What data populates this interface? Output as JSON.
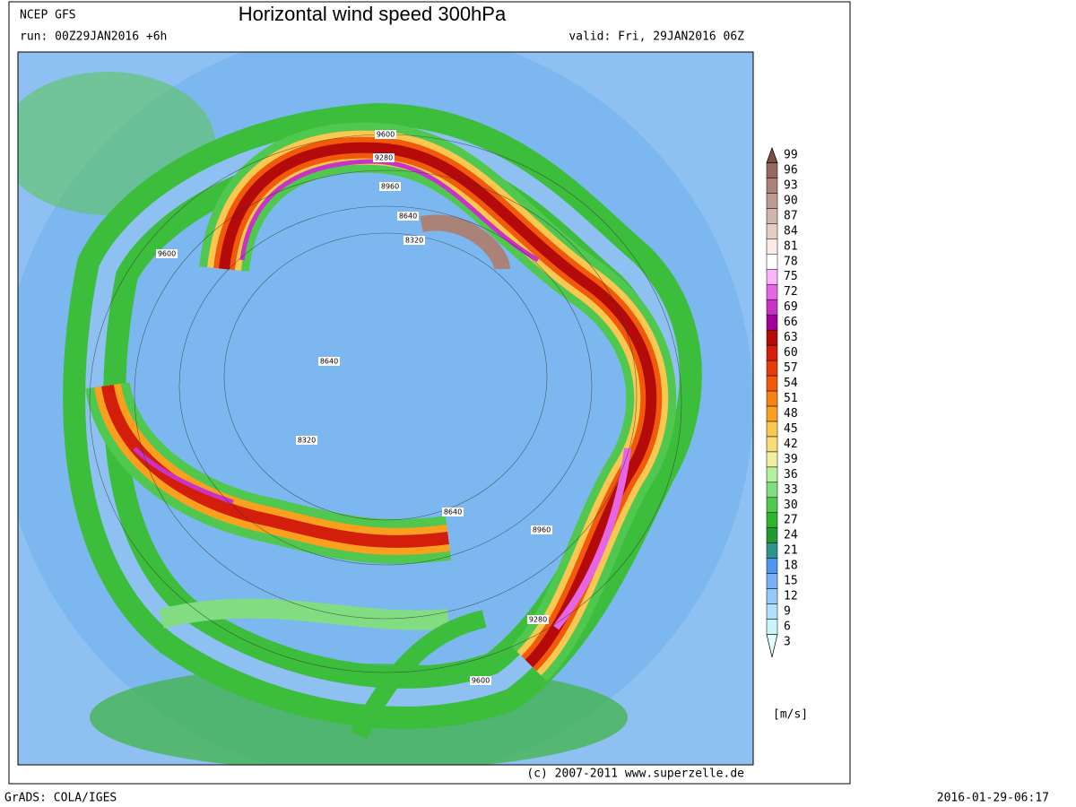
{
  "header": {
    "source": "NCEP GFS",
    "title": "Horizontal wind speed 300hPa",
    "run": "run: 00Z29JAN2016 +6h",
    "valid": "valid: Fri, 29JAN2016 06Z"
  },
  "contour_labels": [
    "9600",
    "9280",
    "8960",
    "8640",
    "8320",
    "9600",
    "8640",
    "8320",
    "8640",
    "8960",
    "9280",
    "9600"
  ],
  "colorbar": {
    "values": [
      3,
      6,
      9,
      12,
      15,
      18,
      21,
      24,
      27,
      30,
      33,
      36,
      39,
      42,
      45,
      48,
      51,
      54,
      57,
      60,
      63,
      66,
      69,
      72,
      75,
      78,
      81,
      84,
      87,
      90,
      93,
      96,
      99
    ],
    "colors": [
      "#e1ffff",
      "#c8f5fa",
      "#afe1fa",
      "#96c8fa",
      "#78aff5",
      "#5096f0",
      "#2d968c",
      "#1e9b32",
      "#2db42d",
      "#50c850",
      "#82dc82",
      "#b4f0a0",
      "#f0f0a0",
      "#fadc78",
      "#fac850",
      "#faa01e",
      "#f58214",
      "#f05a0a",
      "#e63c0a",
      "#d21e0a",
      "#b40a0a",
      "#a000a0",
      "#c832c8",
      "#e664e6",
      "#fab4fa",
      "#ffffff",
      "#faebe6",
      "#e6cdc3",
      "#d2b4aa",
      "#be9b91",
      "#aa8278",
      "#96695f",
      "#785046"
    ],
    "unit": "[m/s]"
  },
  "copyright": "(c) 2007-2011 www.superzelle.de",
  "footer": {
    "left": "GrADS: COLA/IGES",
    "right": "2016-01-29-06:17"
  }
}
